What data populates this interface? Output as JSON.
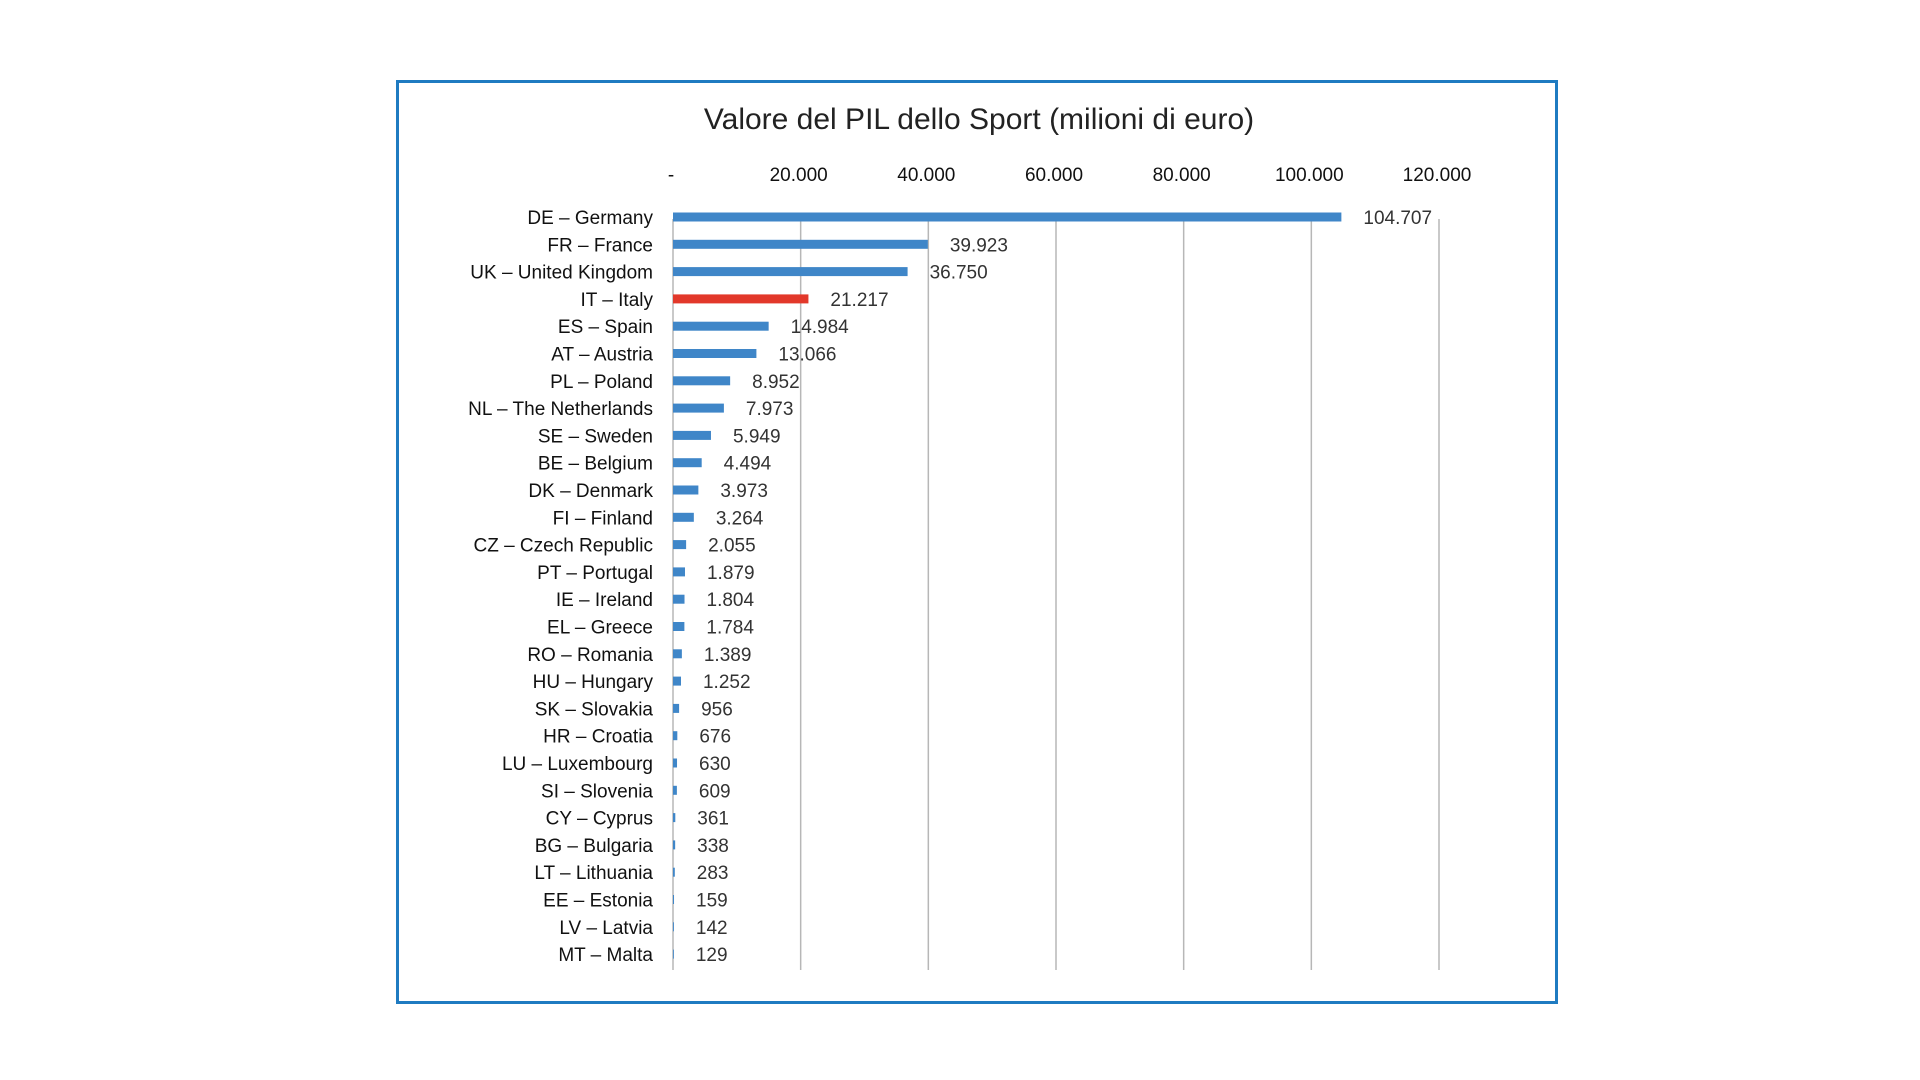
{
  "chart_data": {
    "type": "bar",
    "orientation": "horizontal",
    "title": "Valore del PIL dello Sport (milioni di euro)",
    "xlabel": "",
    "ylabel": "",
    "xlim": [
      0,
      120000
    ],
    "x_ticks": [
      0,
      20000,
      40000,
      60000,
      80000,
      100000,
      120000
    ],
    "x_tick_labels": [
      "-",
      "20.000",
      "40.000",
      "60.000",
      "80.000",
      "100.000",
      "120.000"
    ],
    "grid": "vertical",
    "legend": "none",
    "categories": [
      "DE – Germany",
      "FR – France",
      "UK – United Kingdom",
      "IT – Italy",
      "ES – Spain",
      "AT – Austria",
      "PL – Poland",
      "NL – The Netherlands",
      "SE – Sweden",
      "BE – Belgium",
      "DK – Denmark",
      "FI – Finland",
      "CZ – Czech Republic",
      "PT – Portugal",
      "IE – Ireland",
      "EL – Greece",
      "RO – Romania",
      "HU – Hungary",
      "SK – Slovakia",
      "HR – Croatia",
      "LU – Luxembourg",
      "SI – Slovenia",
      "CY – Cyprus",
      "BG – Bulgaria",
      "LT – Lithuania",
      "EE – Estonia",
      "LV – Latvia",
      "MT – Malta"
    ],
    "values": [
      104707,
      39923,
      36750,
      21217,
      14984,
      13066,
      8952,
      7973,
      5949,
      4494,
      3973,
      3264,
      2055,
      1879,
      1804,
      1784,
      1389,
      1252,
      956,
      676,
      630,
      609,
      361,
      338,
      283,
      159,
      142,
      129
    ],
    "value_labels": [
      "104.707",
      "39.923",
      "36.750",
      "21.217",
      "14.984",
      "13.066",
      "8.952",
      "7.973",
      "5.949",
      "4.494",
      "3.973",
      "3.264",
      "2.055",
      "1.879",
      "1.804",
      "1.784",
      "1.389",
      "1.252",
      "956",
      "676",
      "630",
      "609",
      "361",
      "338",
      "283",
      "159",
      "142",
      "129"
    ],
    "highlight_category": "IT – Italy",
    "colors": {
      "bar": "#3f86c8",
      "highlight": "#e2382a",
      "grid": "#b7b7b7",
      "frame": "#1f7bc1"
    }
  }
}
